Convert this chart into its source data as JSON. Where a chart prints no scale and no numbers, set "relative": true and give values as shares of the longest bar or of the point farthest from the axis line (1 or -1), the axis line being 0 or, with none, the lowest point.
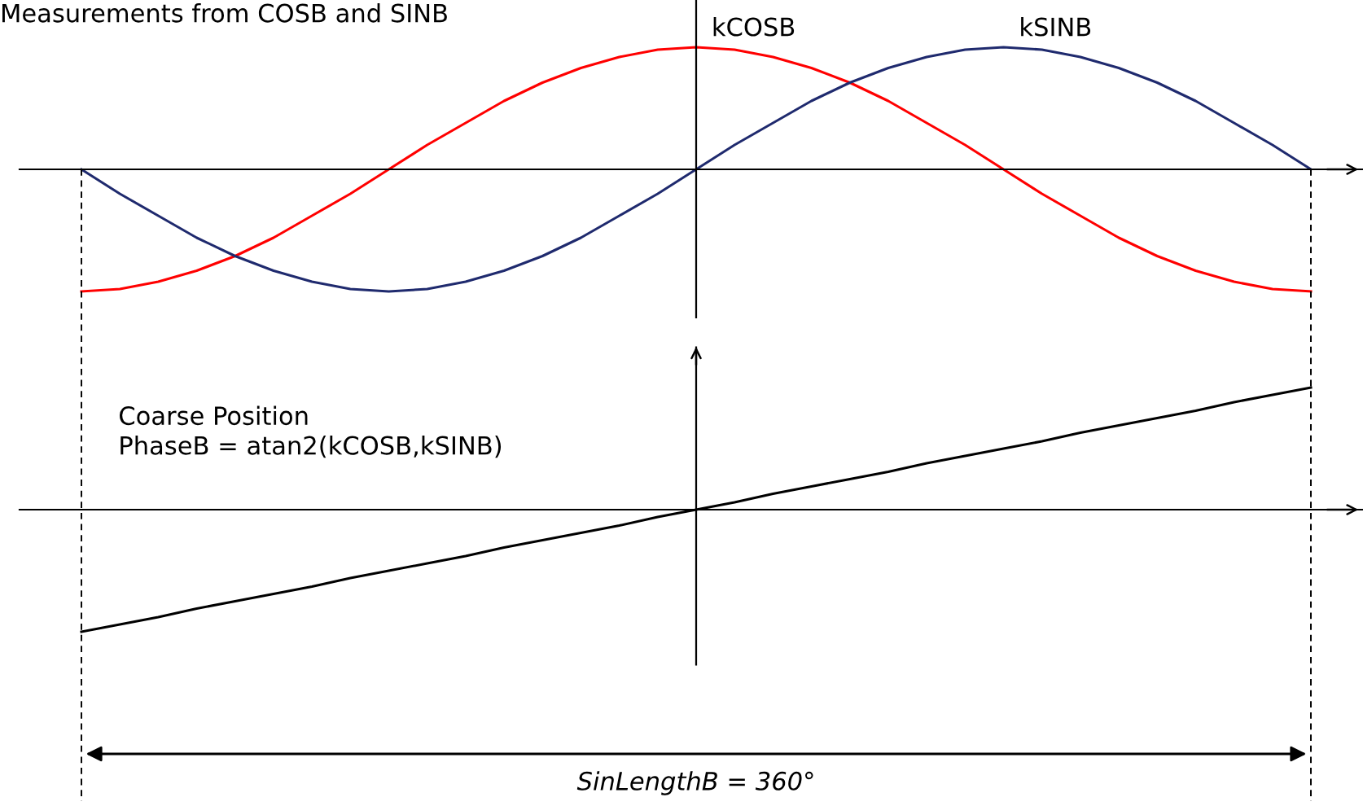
{
  "chart_data": [
    {
      "type": "line",
      "title": "Measurements from COSB and SINB",
      "relative": true,
      "categories": [
        null,
        null,
        null,
        null,
        null,
        null,
        null,
        null,
        null,
        null,
        null,
        null,
        null,
        null,
        null,
        null,
        null,
        null,
        null,
        null,
        null,
        null,
        null,
        null,
        null,
        null,
        null,
        null,
        null,
        null,
        null,
        null,
        null
      ],
      "series": [
        {
          "name": "kCOSB",
          "color": "#ff0000",
          "values": [
            -1,
            -0.98,
            -0.92,
            -0.83,
            -0.71,
            -0.56,
            -0.38,
            -0.2,
            0,
            0.2,
            0.38,
            0.56,
            0.71,
            0.83,
            0.92,
            0.98,
            1,
            0.98,
            0.92,
            0.83,
            0.71,
            0.56,
            0.38,
            0.2,
            0,
            -0.2,
            -0.38,
            -0.56,
            -0.71,
            -0.83,
            -0.92,
            -0.98,
            -1
          ]
        },
        {
          "name": "kSINB",
          "color": "#1f2a6e",
          "values": [
            0,
            -0.2,
            -0.38,
            -0.56,
            -0.71,
            -0.83,
            -0.92,
            -0.98,
            -1,
            -0.98,
            -0.92,
            -0.83,
            -0.71,
            -0.56,
            -0.38,
            -0.2,
            0,
            0.2,
            0.38,
            0.56,
            0.71,
            0.83,
            0.92,
            0.98,
            1,
            0.98,
            0.92,
            0.83,
            0.71,
            0.56,
            0.38,
            0.2,
            0
          ]
        }
      ]
    },
    {
      "type": "line",
      "relative": true,
      "categories": [
        null,
        null,
        null,
        null,
        null,
        null,
        null,
        null,
        null,
        null,
        null,
        null,
        null,
        null,
        null,
        null,
        null,
        null,
        null,
        null,
        null,
        null,
        null,
        null,
        null,
        null,
        null,
        null,
        null,
        null,
        null,
        null,
        null
      ],
      "series": [
        {
          "color": "#000000",
          "values": [
            -1,
            -0.94,
            -0.88,
            -0.81,
            -0.75,
            -0.69,
            -0.63,
            -0.56,
            -0.5,
            -0.44,
            -0.38,
            -0.31,
            -0.25,
            -0.19,
            -0.13,
            -0.06,
            0,
            0.06,
            0.13,
            0.19,
            0.25,
            0.31,
            0.38,
            0.44,
            0.5,
            0.56,
            0.63,
            0.69,
            0.75,
            0.81,
            0.88,
            0.94,
            1
          ]
        }
      ],
      "annotations": [
        "Coarse Position\nPhaseB = atan2(kCOSB,kSINB)",
        "SinLengthB = 360°"
      ]
    }
  ]
}
